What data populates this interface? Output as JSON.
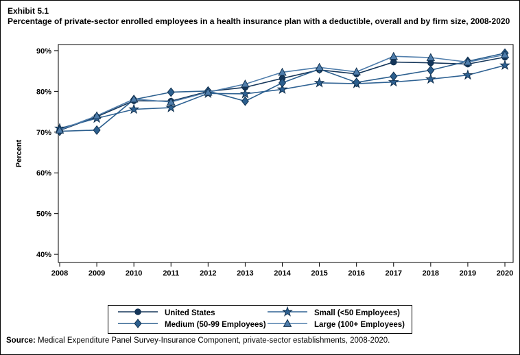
{
  "header": {
    "exhibit_label": "Exhibit 5.1",
    "title": "Percentage of private-sector enrolled employees in a health insurance plan with a deductible, overall and by firm size, 2008-2020"
  },
  "chart_data": {
    "type": "line",
    "x": [
      2008,
      2009,
      2010,
      2011,
      2012,
      2013,
      2014,
      2015,
      2016,
      2017,
      2018,
      2019,
      2020
    ],
    "xlabel": "",
    "ylabel": "Percent",
    "ylim": [
      38,
      91.5
    ],
    "yticks": [
      40,
      50,
      60,
      70,
      80,
      90
    ],
    "ytick_format": "percent",
    "grid": false,
    "legend_position": "bottom",
    "series": [
      {
        "name": "us",
        "label": "United States",
        "marker": "circle",
        "color": "#15365a",
        "values": [
          70.4,
          73.8,
          77.7,
          77.6,
          80.0,
          81.0,
          83.2,
          85.3,
          84.3,
          87.2,
          87.0,
          86.7,
          88.4
        ]
      },
      {
        "name": "small",
        "label": "Small (<50 Employees)",
        "marker": "star",
        "color": "#2f6293",
        "values": [
          70.9,
          73.4,
          75.6,
          76.0,
          79.5,
          79.4,
          80.5,
          82.1,
          81.9,
          82.3,
          83.0,
          84.0,
          86.4
        ]
      },
      {
        "name": "medium",
        "label": "Medium (50-99 Employees)",
        "marker": "diamond",
        "color": "#2c5f8e",
        "values": [
          70.2,
          70.5,
          78.0,
          79.8,
          80.1,
          77.6,
          82.1,
          85.5,
          82.2,
          83.7,
          85.2,
          87.4,
          89.4
        ]
      },
      {
        "name": "large",
        "label": "Large (100+ Employees)",
        "marker": "triangle",
        "color": "#4f7dab",
        "values": [
          70.5,
          74.0,
          78.1,
          77.4,
          79.8,
          81.8,
          84.7,
          85.9,
          84.8,
          88.6,
          88.3,
          87.2,
          89.0
        ]
      }
    ]
  },
  "source": {
    "label": "Source:",
    "text": " Medical Expenditure Panel Survey-Insurance Component, private-sector establishments, 2008-2020."
  }
}
